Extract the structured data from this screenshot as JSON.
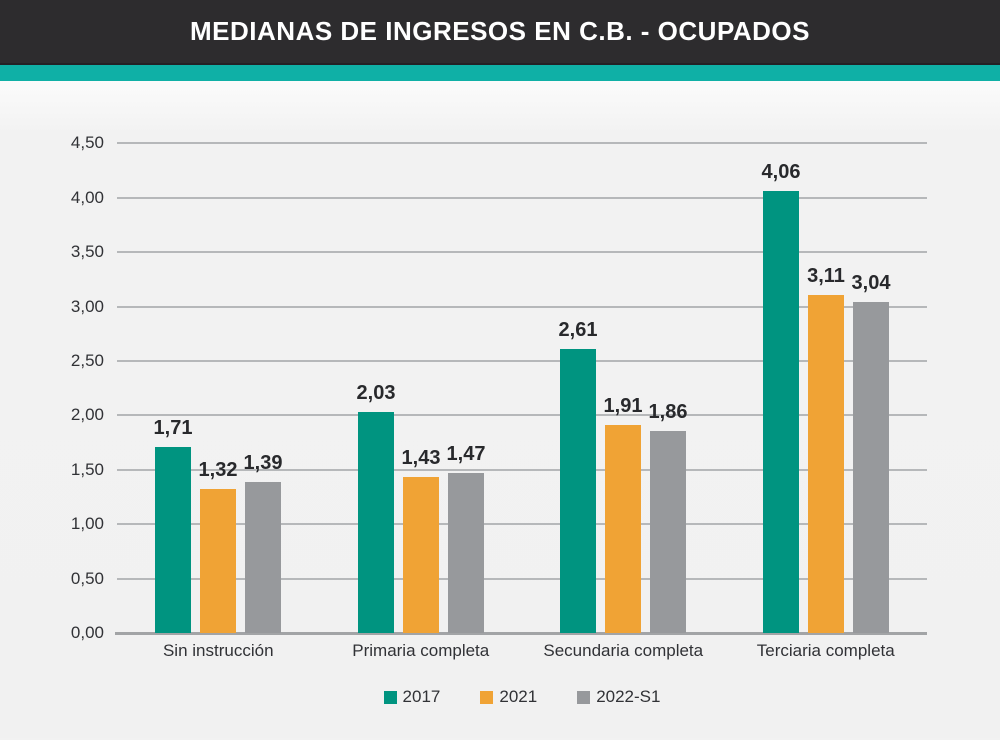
{
  "title": "MEDIANAS DE INGRESOS EN C.B. - OCUPADOS",
  "colors": {
    "header_bg": "#2d2c2e",
    "accent_stripe": "#0fb0a6",
    "series_2017": "#009480",
    "series_2021": "#f0a335",
    "series_2022_s1": "#97999c",
    "gridline": "#b6b8ba",
    "axis": "#a2a4a6",
    "text": "#313236"
  },
  "chart_data": {
    "type": "bar",
    "title": "MEDIANAS DE INGRESOS EN C.B. - OCUPADOS",
    "xlabel": "",
    "ylabel": "",
    "categories": [
      "Sin instrucción",
      "Primaria completa",
      "Secundaria completa",
      "Terciaria completa"
    ],
    "series": [
      {
        "name": "2017",
        "color": "#009480",
        "values": [
          1.71,
          2.03,
          2.61,
          4.06
        ],
        "labels": [
          "1,71",
          "2,03",
          "2,61",
          "4,06"
        ]
      },
      {
        "name": "2021",
        "color": "#f0a335",
        "values": [
          1.32,
          1.43,
          1.91,
          3.11
        ],
        "labels": [
          "1,32",
          "1,43",
          "1,91",
          "3,11"
        ]
      },
      {
        "name": "2022-S1",
        "color": "#97999c",
        "values": [
          1.39,
          1.47,
          1.86,
          3.04
        ],
        "labels": [
          "1,39",
          "1,47",
          "1,86",
          "3,04"
        ]
      }
    ],
    "ylim": [
      0,
      4.5
    ],
    "ytick_step": 0.5,
    "ytick_labels": [
      "0,00",
      "0,50",
      "1,00",
      "1,50",
      "2,00",
      "2,50",
      "3,00",
      "3,50",
      "4,00",
      "4,50"
    ],
    "grid": true,
    "legend_position": "bottom"
  },
  "legend": {
    "items": [
      {
        "label": "2017",
        "color": "#009480"
      },
      {
        "label": "2021",
        "color": "#f0a335"
      },
      {
        "label": "2022-S1",
        "color": "#97999c"
      }
    ]
  }
}
